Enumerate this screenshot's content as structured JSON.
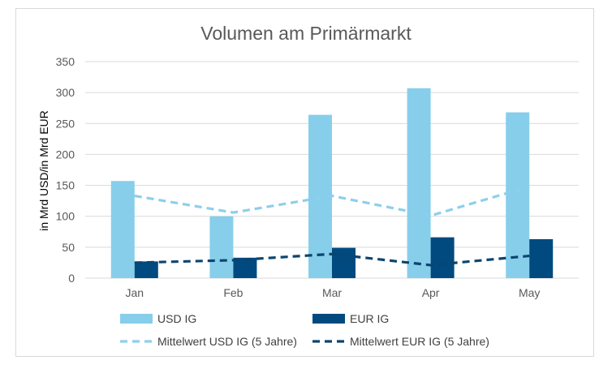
{
  "colors": {
    "usd": "#87CEEB",
    "eur": "#004A7F",
    "usd_avg": "#8CCFEC",
    "eur_avg": "#0B456F",
    "grid": "#d9d9d9"
  },
  "chart_data": {
    "type": "bar",
    "title": "Volumen am Primärmarkt",
    "ylabel": "in Mrd USD/in Mrd EUR",
    "xlabel": "",
    "ylim": [
      0,
      350
    ],
    "yticks": [
      0,
      50,
      100,
      150,
      200,
      250,
      300,
      350
    ],
    "grid": true,
    "legend_position": "bottom",
    "categories": [
      "Jan",
      "Feb",
      "Mar",
      "Apr",
      "May"
    ],
    "series": [
      {
        "name": "USD IG",
        "kind": "bar",
        "values": [
          157,
          100,
          264,
          307,
          268
        ]
      },
      {
        "name": "EUR IG",
        "kind": "bar",
        "values": [
          27,
          33,
          49,
          66,
          63
        ]
      },
      {
        "name": "Mittelwert USD IG (5 Jahre)",
        "kind": "line",
        "style": "dashed",
        "values": [
          133,
          106,
          133,
          101,
          148
        ]
      },
      {
        "name": "Mittelwert EUR IG (5 Jahre)",
        "kind": "line",
        "style": "dashed",
        "values": [
          25,
          29,
          39,
          21,
          36
        ]
      }
    ]
  }
}
